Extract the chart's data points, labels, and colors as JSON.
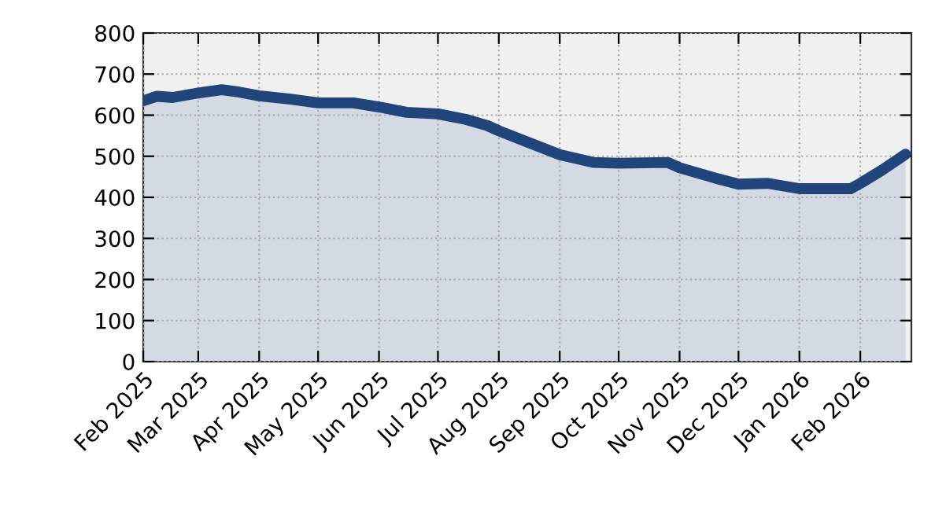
{
  "chart_data": {
    "type": "area",
    "color": "#21457a",
    "x": [
      "2025-02-01",
      "2025-02-08",
      "2025-02-16",
      "2025-03-01",
      "2025-03-13",
      "2025-03-22",
      "2025-04-01",
      "2025-04-17",
      "2025-05-01",
      "2025-05-19",
      "2025-06-01",
      "2025-06-15",
      "2025-07-01",
      "2025-07-15",
      "2025-07-26",
      "2025-08-01",
      "2025-08-11",
      "2025-09-01",
      "2025-09-18",
      "2025-10-01",
      "2025-10-26",
      "2025-11-01",
      "2025-11-19",
      "2025-12-01",
      "2025-12-16",
      "2026-01-01",
      "2026-01-17",
      "2026-01-27",
      "2026-02-01",
      "2026-02-12",
      "2026-02-24"
    ],
    "values": [
      635,
      646,
      643,
      654,
      662,
      656,
      647,
      639,
      630,
      630,
      620,
      607,
      603,
      590,
      575,
      562,
      543,
      504,
      485,
      483,
      485,
      472,
      447,
      432,
      434,
      421,
      421,
      421,
      434,
      466,
      505
    ],
    "xlim": [
      "2025-02-01",
      "2026-02-27"
    ],
    "xticks": [
      {
        "value": "2025-02-01",
        "label": "Feb 2025"
      },
      {
        "value": "2025-03-01",
        "label": "Mar 2025"
      },
      {
        "value": "2025-04-01",
        "label": "Apr 2025"
      },
      {
        "value": "2025-05-01",
        "label": "May 2025"
      },
      {
        "value": "2025-06-01",
        "label": "Jun 2025"
      },
      {
        "value": "2025-07-01",
        "label": "Jul 2025"
      },
      {
        "value": "2025-08-01",
        "label": "Aug 2025"
      },
      {
        "value": "2025-09-01",
        "label": "Sep 2025"
      },
      {
        "value": "2025-10-01",
        "label": "Oct 2025"
      },
      {
        "value": "2025-11-01",
        "label": "Nov 2025"
      },
      {
        "value": "2025-12-01",
        "label": "Dec 2025"
      },
      {
        "value": "2026-01-01",
        "label": "Jan 2026"
      },
      {
        "value": "2026-02-01",
        "label": "Feb 2026"
      }
    ],
    "ylim": [
      0,
      800
    ],
    "yticks": [
      0,
      100,
      200,
      300,
      400,
      500,
      600,
      700,
      800
    ],
    "grid": true,
    "line_style": "dotted"
  }
}
